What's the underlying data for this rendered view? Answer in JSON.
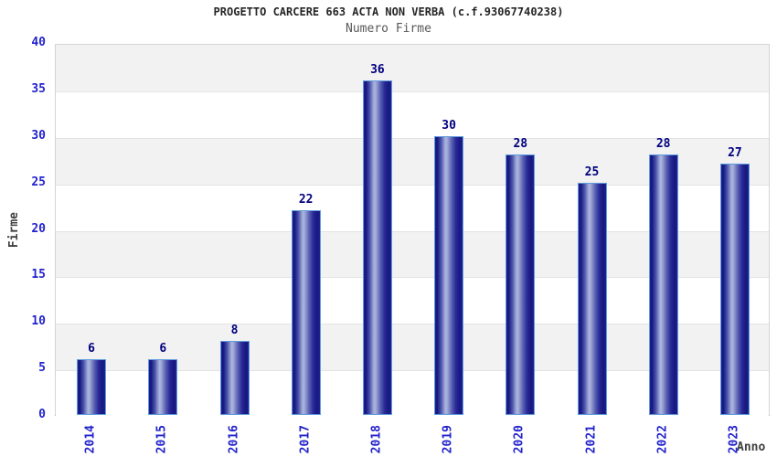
{
  "chart_data": {
    "type": "bar",
    "title": "PROGETTO CARCERE 663 ACTA NON VERBA (c.f.93067740238)",
    "subtitle": "Numero Firme",
    "xlabel": "Anno",
    "ylabel": "Firme",
    "categories": [
      "2014",
      "2015",
      "2016",
      "2017",
      "2018",
      "2019",
      "2020",
      "2021",
      "2022",
      "2023"
    ],
    "values": [
      6,
      6,
      8,
      22,
      36,
      30,
      28,
      25,
      28,
      27
    ],
    "ylim": [
      0,
      40
    ],
    "yticks": [
      0,
      5,
      10,
      15,
      20,
      25,
      30,
      35,
      40
    ],
    "grid": "alternating-horizontal-bands",
    "legend": "none",
    "colors": {
      "bar_dark": "#17177f",
      "bar_light": "#aeb7de",
      "bar_border": "#5f9bdd",
      "tick_label": "#2222cc",
      "value_label": "#000080",
      "title": "#262626",
      "subtitle": "#595959",
      "axis_title": "#404040",
      "band_gray": "#f2f2f2",
      "band_white": "#ffffff",
      "plot_border": "#d4d4d4",
      "axis_line": "#a0a0a0"
    }
  }
}
